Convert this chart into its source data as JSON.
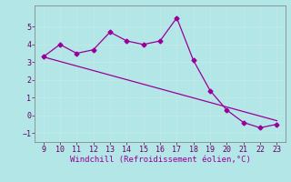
{
  "x": [
    9,
    10,
    11,
    12,
    13,
    14,
    15,
    16,
    17,
    18,
    19,
    20,
    21,
    22,
    23
  ],
  "y": [
    3.3,
    4.0,
    3.5,
    3.7,
    4.7,
    4.2,
    4.0,
    4.2,
    5.5,
    3.1,
    1.4,
    0.3,
    -0.4,
    -0.7,
    -0.5
  ],
  "trend_x": [
    9,
    23
  ],
  "trend_y": [
    3.3,
    -0.3
  ],
  "line_color": "#990099",
  "bg_color": "#b3e6e6",
  "grid_color": "#d0f0f0",
  "xlabel": "Windchill (Refroidissement éolien,°C)",
  "ylim": [
    -1.5,
    6.2
  ],
  "xlim": [
    8.5,
    23.5
  ],
  "yticks": [
    -1,
    0,
    1,
    2,
    3,
    4,
    5
  ],
  "xticks": [
    9,
    10,
    11,
    12,
    13,
    14,
    15,
    16,
    17,
    18,
    19,
    20,
    21,
    22,
    23
  ]
}
